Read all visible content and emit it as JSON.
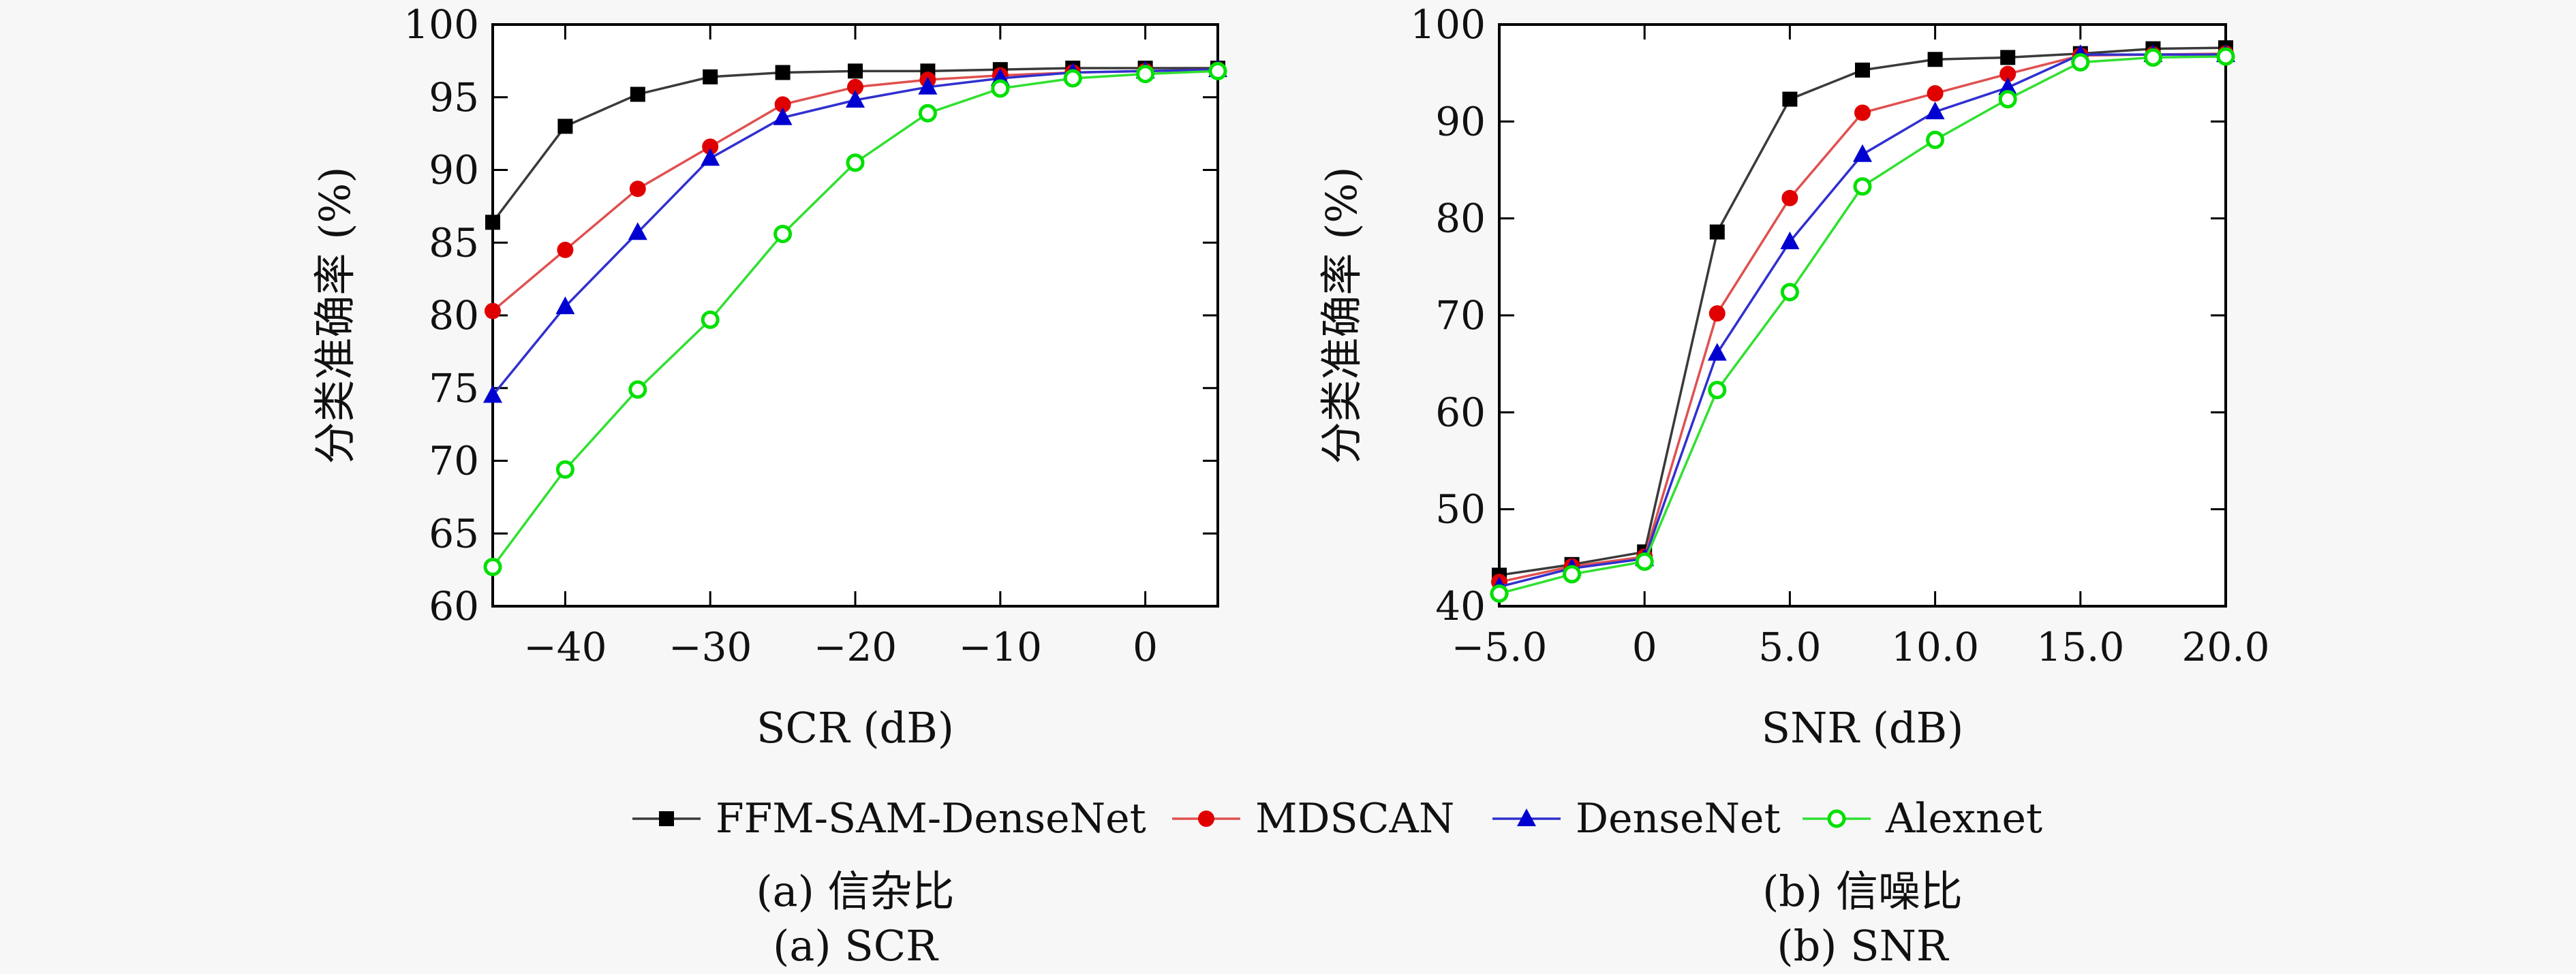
{
  "chart_data": [
    {
      "type": "line",
      "xlabel": "SCR (dB)",
      "ylabel": "分类准确率 (%)",
      "x": [
        -45,
        -40,
        -35,
        -30,
        -25,
        -20,
        -15,
        -10,
        -5,
        0,
        5
      ],
      "xlim": [
        -45,
        5
      ],
      "ylim": [
        60,
        100
      ],
      "xticks": [
        -40,
        -30,
        -20,
        -10,
        0
      ],
      "xtick_labels": [
        "−40",
        "−30",
        "−20",
        "−10",
        "0"
      ],
      "yticks": [
        60,
        65,
        70,
        75,
        80,
        85,
        90,
        95,
        100
      ],
      "ytick_labels": [
        "60",
        "65",
        "70",
        "75",
        "80",
        "85",
        "90",
        "95",
        "100"
      ],
      "grid": false,
      "series": [
        {
          "name": "FFM-SAM-DenseNet",
          "values": [
            86.4,
            93.0,
            95.2,
            96.4,
            96.7,
            96.8,
            96.8,
            96.9,
            97.0,
            97.0,
            97.0
          ]
        },
        {
          "name": "MDSCAN",
          "values": [
            80.3,
            84.5,
            88.7,
            91.6,
            94.5,
            95.7,
            96.2,
            96.5,
            96.7,
            96.8,
            96.9
          ]
        },
        {
          "name": "DenseNet",
          "values": [
            74.5,
            80.6,
            85.7,
            90.8,
            93.6,
            94.8,
            95.7,
            96.3,
            96.7,
            96.8,
            96.9
          ]
        },
        {
          "name": "Alexnet",
          "values": [
            62.7,
            69.4,
            74.9,
            79.7,
            85.6,
            90.5,
            93.9,
            95.6,
            96.3,
            96.6,
            96.8
          ]
        }
      ],
      "caption_zh": "(a) 信杂比",
      "caption_en": "(a) SCR"
    },
    {
      "type": "line",
      "xlabel": "SNR (dB)",
      "ylabel": "分类准确率 (%)",
      "x": [
        -5,
        -2.5,
        0,
        2.5,
        5,
        7.5,
        10,
        12.5,
        15,
        17.5,
        20
      ],
      "xlim": [
        -5,
        20
      ],
      "ylim": [
        40,
        100
      ],
      "xticks": [
        -5,
        0,
        5,
        10,
        15,
        20
      ],
      "xtick_labels": [
        "−5.0",
        "0",
        "5.0",
        "10.0",
        "15.0",
        "20.0"
      ],
      "yticks": [
        40,
        50,
        60,
        70,
        80,
        90,
        100
      ],
      "ytick_labels": [
        "40",
        "50",
        "60",
        "70",
        "80",
        "90",
        "100"
      ],
      "grid": false,
      "series": [
        {
          "name": "FFM-SAM-DenseNet",
          "values": [
            43.2,
            44.3,
            45.6,
            78.6,
            92.3,
            95.3,
            96.4,
            96.6,
            97.0,
            97.5,
            97.6
          ]
        },
        {
          "name": "MDSCAN",
          "values": [
            42.5,
            44.1,
            45.1,
            70.2,
            82.1,
            90.9,
            92.9,
            94.9,
            96.8,
            96.9,
            97.0
          ]
        },
        {
          "name": "DenseNet",
          "values": [
            42.0,
            43.9,
            44.9,
            66.1,
            77.6,
            86.6,
            91.0,
            93.5,
            96.9,
            96.9,
            96.9
          ]
        },
        {
          "name": "Alexnet",
          "values": [
            41.3,
            43.3,
            44.6,
            62.3,
            72.4,
            83.3,
            88.1,
            92.3,
            96.1,
            96.6,
            96.7
          ]
        }
      ],
      "caption_zh": "(b) 信噪比",
      "caption_en": "(b) SNR"
    }
  ],
  "legend": {
    "placement": "bottom-center",
    "entries": [
      "FFM-SAM-DenseNet",
      "MDSCAN",
      "DenseNet",
      "Alexnet"
    ]
  },
  "series_styles": [
    {
      "color": "#000000",
      "line": "#3a3a3a",
      "marker": "square",
      "fill": "#000000"
    },
    {
      "color": "#e00000",
      "line": "#e05050",
      "marker": "circle",
      "fill": "#e00000"
    },
    {
      "color": "#0000d0",
      "line": "#3030d0",
      "marker": "triangle",
      "fill": "#0000d0"
    },
    {
      "color": "#00e000",
      "line": "#30e030",
      "marker": "circle-open",
      "fill": "#ffffff"
    }
  ]
}
